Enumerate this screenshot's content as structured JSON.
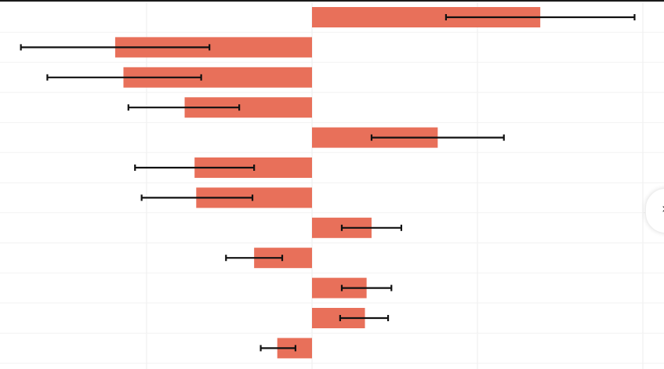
{
  "chart_data": {
    "type": "bar",
    "orientation": "horizontal",
    "title": "",
    "xlabel": "",
    "ylabel": "",
    "xlim": [
      -2.0,
      2.0
    ],
    "grid": true,
    "error_bars": true,
    "bar_color": "#e8705a",
    "categories": [
      "",
      "",
      "",
      "",
      "",
      "",
      "",
      "",
      "",
      "",
      "",
      ""
    ],
    "values": [
      1.38,
      -1.19,
      -1.14,
      -0.77,
      0.76,
      -0.71,
      -0.7,
      0.36,
      -0.35,
      0.33,
      0.32,
      -0.21
    ],
    "error_low": [
      0.81,
      -1.76,
      -1.6,
      -1.11,
      0.36,
      -1.07,
      -1.03,
      0.18,
      -0.52,
      0.18,
      0.17,
      -0.31
    ],
    "error_high": [
      1.95,
      -0.62,
      -0.67,
      -0.44,
      1.16,
      -0.35,
      -0.36,
      0.54,
      -0.18,
      0.48,
      0.46,
      -0.1
    ]
  },
  "ui": {
    "nav_icon": "chevron-right-icon",
    "nav_glyph": "›"
  }
}
